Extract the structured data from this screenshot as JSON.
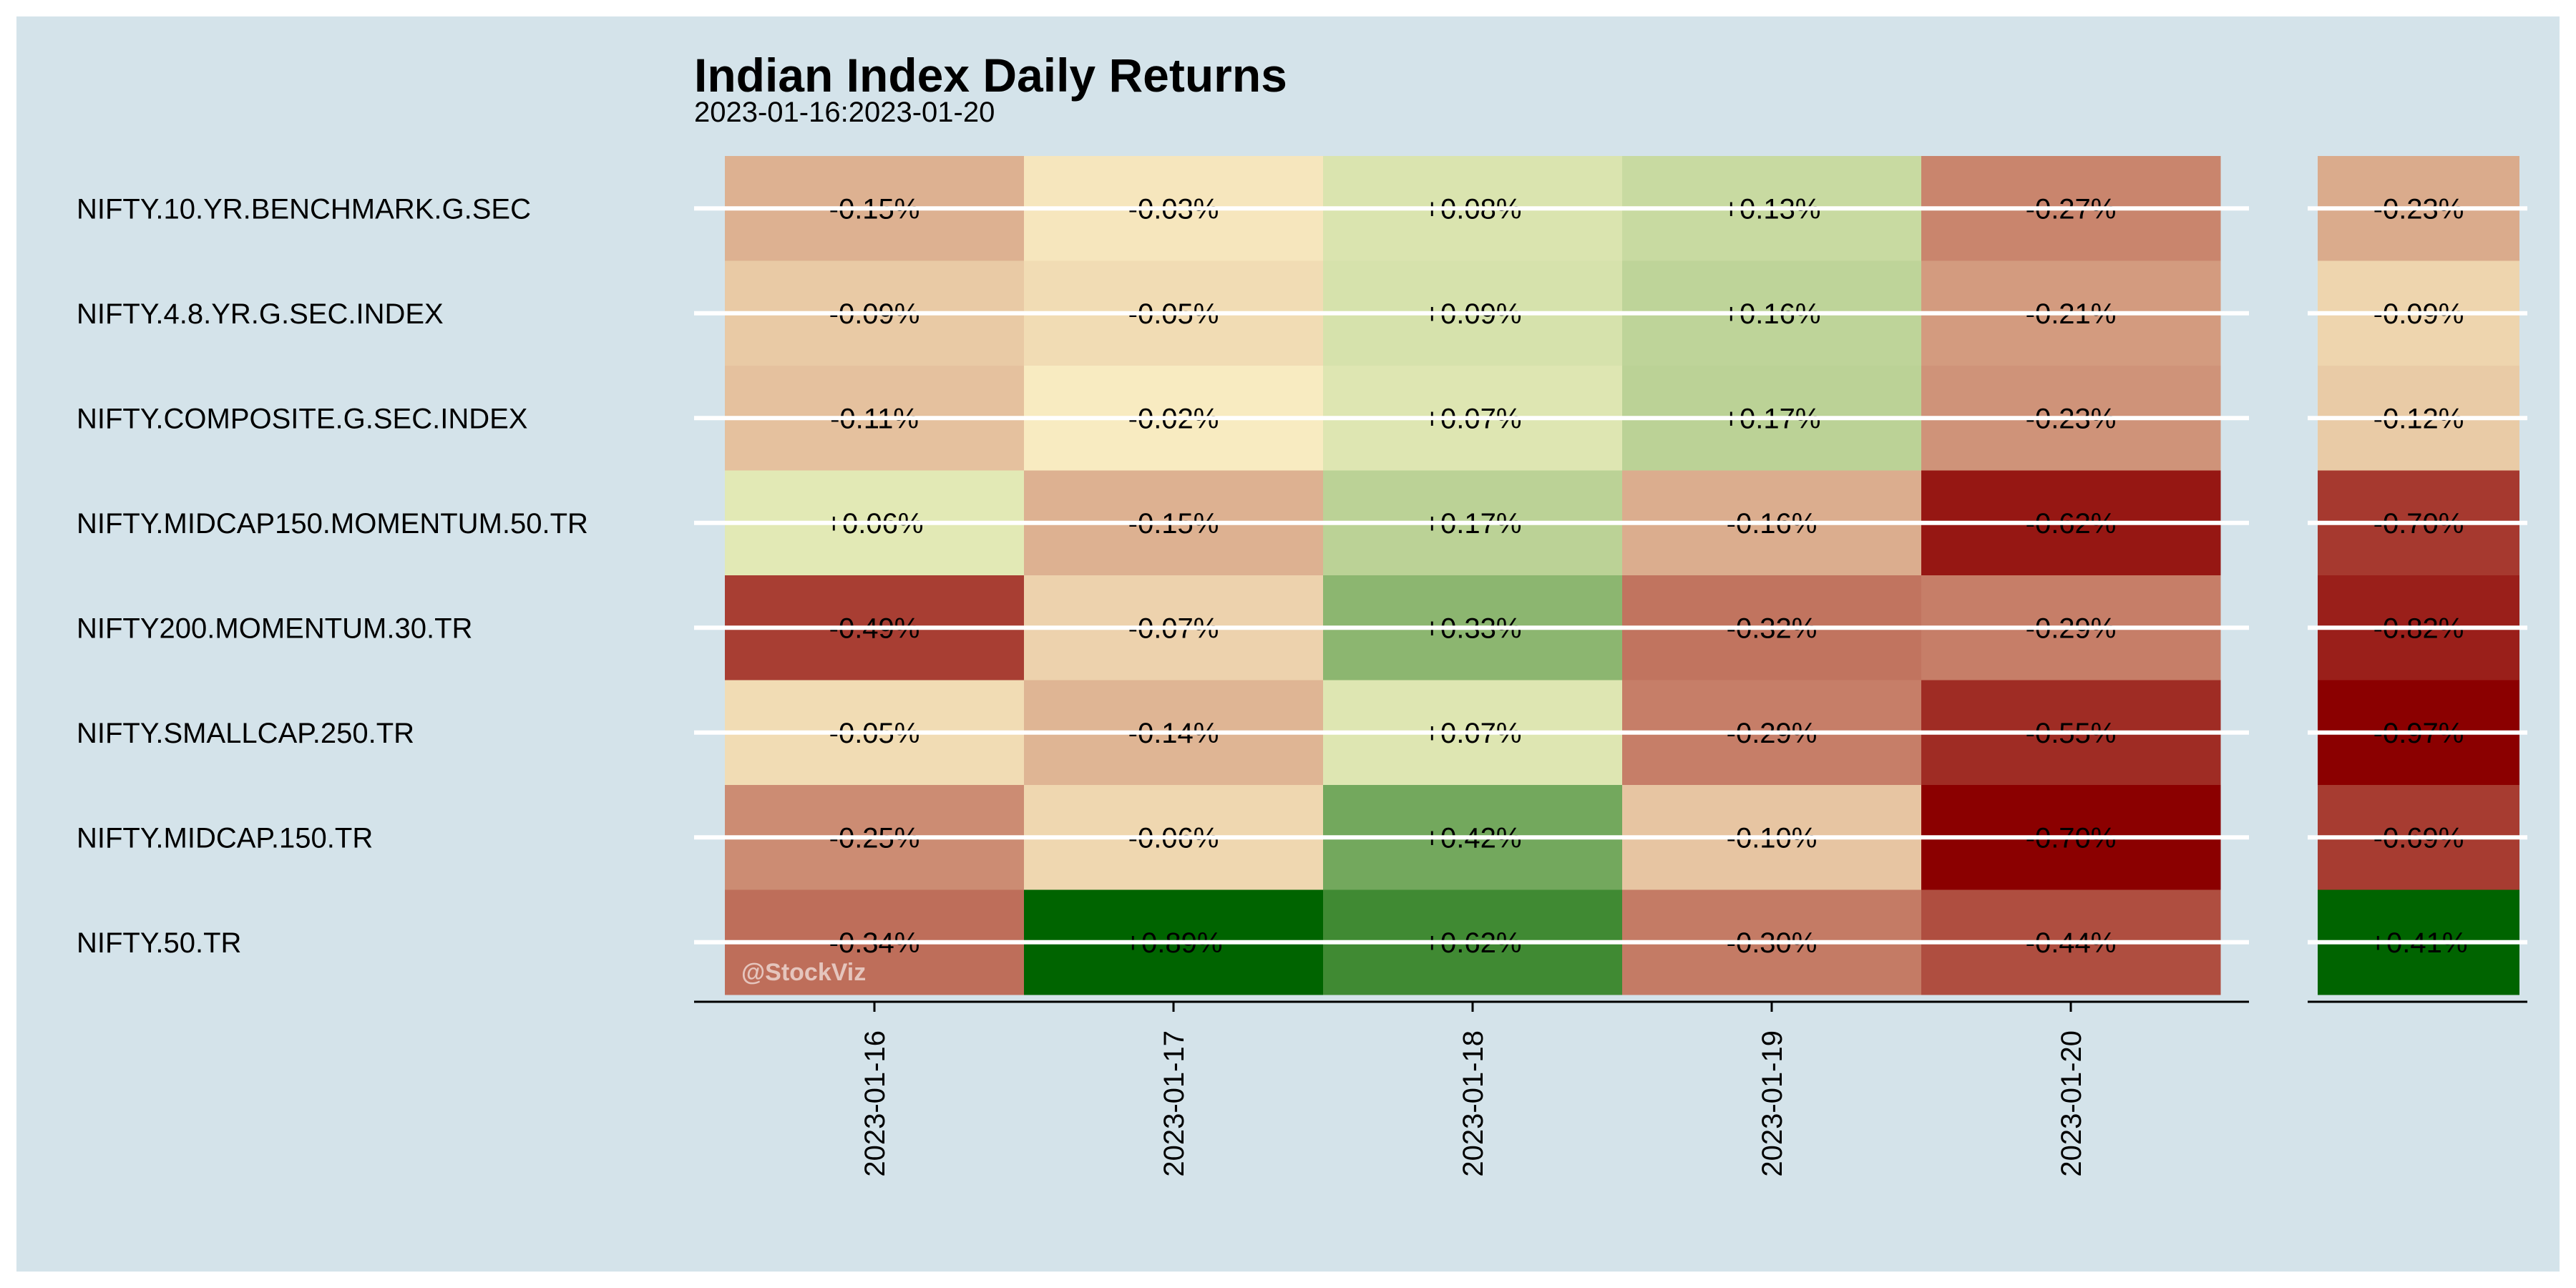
{
  "chart_data": {
    "type": "heatmap",
    "title": "Indian Index Daily Returns",
    "subtitle": "2023-01-16:2023-01-20",
    "watermark": "@StockViz",
    "columns": [
      "2023-01-16",
      "2023-01-17",
      "2023-01-18",
      "2023-01-19",
      "2023-01-20"
    ],
    "rows": [
      "NIFTY.10.YR.BENCHMARK.G.SEC",
      "NIFTY.4.8.YR.G.SEC.INDEX",
      "NIFTY.COMPOSITE.G.SEC.INDEX",
      "NIFTY.MIDCAP150.MOMENTUM.50.TR",
      "NIFTY200.MOMENTUM.30.TR",
      "NIFTY.SMALLCAP.250.TR",
      "NIFTY.MIDCAP.150.TR",
      "NIFTY.50.TR"
    ],
    "values": [
      [
        -0.15,
        -0.03,
        0.08,
        0.13,
        -0.27
      ],
      [
        -0.09,
        -0.05,
        0.09,
        0.16,
        -0.21
      ],
      [
        -0.11,
        -0.02,
        0.07,
        0.17,
        -0.23
      ],
      [
        0.06,
        -0.15,
        0.17,
        -0.16,
        -0.62
      ],
      [
        -0.49,
        -0.07,
        0.33,
        -0.32,
        -0.29
      ],
      [
        -0.05,
        -0.14,
        0.07,
        -0.29,
        -0.55
      ],
      [
        -0.25,
        -0.06,
        0.42,
        -0.1,
        -0.7
      ],
      [
        -0.34,
        0.89,
        0.62,
        -0.3,
        -0.44
      ]
    ],
    "totals": [
      -0.23,
      -0.09,
      -0.12,
      -0.7,
      -0.82,
      -0.97,
      -0.69,
      0.41
    ],
    "colors": {
      "background": "#d4e3ea",
      "negative_extreme": "#8b0000",
      "neutral": "#fffacd",
      "positive_extreme": "#006400"
    }
  }
}
